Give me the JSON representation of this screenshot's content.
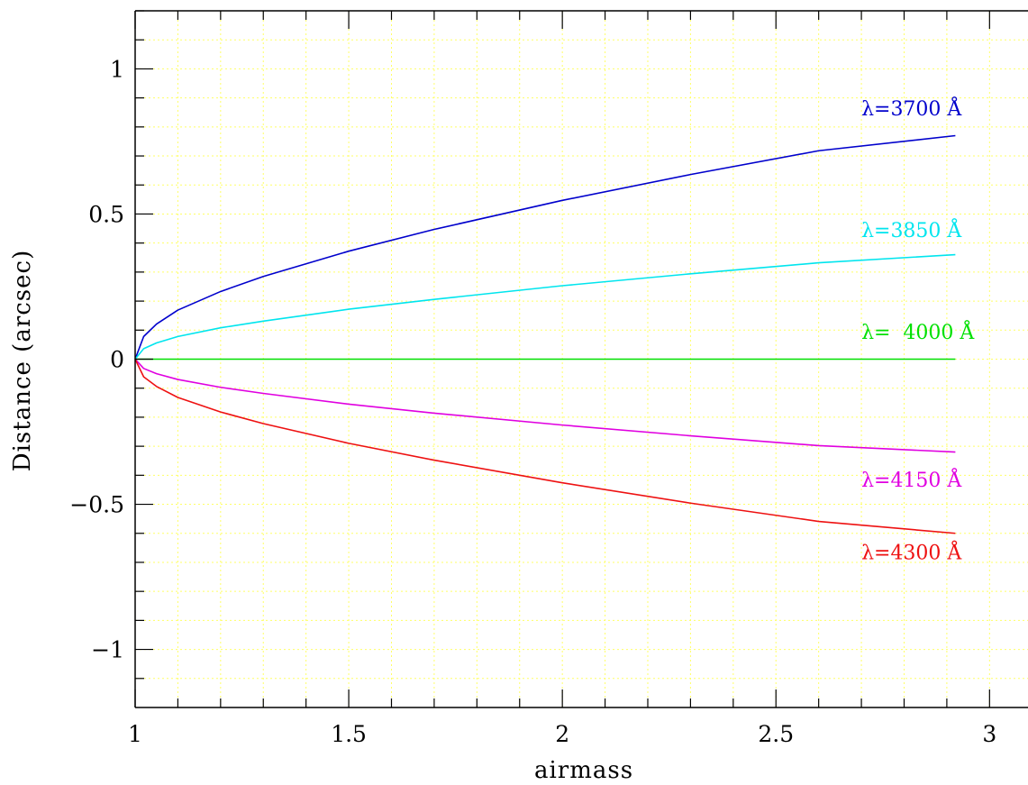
{
  "chart_data": {
    "type": "line",
    "xlabel": "airmass",
    "ylabel": "Distance (arcsec)",
    "xlim": [
      1,
      3.09
    ],
    "ylim": [
      -1.2,
      1.2
    ],
    "x_ticks": [
      {
        "value": 1,
        "label": "1"
      },
      {
        "value": 1.5,
        "label": "1.5"
      },
      {
        "value": 2,
        "label": "2"
      },
      {
        "value": 2.5,
        "label": "2.5"
      },
      {
        "value": 3,
        "label": "3"
      }
    ],
    "y_ticks": [
      {
        "value": -1,
        "label": "−1"
      },
      {
        "value": -0.5,
        "label": "−0.5"
      },
      {
        "value": 0,
        "label": "0"
      },
      {
        "value": 0.5,
        "label": "0.5"
      },
      {
        "value": 1,
        "label": "1"
      }
    ],
    "grid": true,
    "grid_color": "#ffff66",
    "x_minor_step": 0.1,
    "y_minor_step": 0.1,
    "series": [
      {
        "name": "λ=3700 Å",
        "color": "#0000cc",
        "x": [
          1.0,
          1.02,
          1.05,
          1.1,
          1.2,
          1.3,
          1.5,
          1.7,
          2.0,
          2.3,
          2.6,
          2.92
        ],
        "y": [
          0.0,
          0.078,
          0.121,
          0.169,
          0.233,
          0.285,
          0.372,
          0.447,
          0.547,
          0.636,
          0.718,
          0.77
        ]
      },
      {
        "name": "λ=3850 Å",
        "color": "#00e5ee",
        "x": [
          1.0,
          1.02,
          1.05,
          1.1,
          1.2,
          1.3,
          1.5,
          1.7,
          2.0,
          2.3,
          2.6,
          2.92
        ],
        "y": [
          0.0,
          0.036,
          0.056,
          0.078,
          0.108,
          0.131,
          0.172,
          0.206,
          0.253,
          0.294,
          0.332,
          0.36
        ]
      },
      {
        "name": "λ=  4000 Å",
        "color": "#00e000",
        "x": [
          1.0,
          2.92
        ],
        "y": [
          0.0,
          0.0
        ]
      },
      {
        "name": "λ=4150 Å",
        "color": "#e000e0",
        "x": [
          1.0,
          1.02,
          1.05,
          1.1,
          1.2,
          1.3,
          1.5,
          1.7,
          2.0,
          2.3,
          2.6,
          2.92
        ],
        "y": [
          0.0,
          -0.032,
          -0.05,
          -0.07,
          -0.097,
          -0.118,
          -0.155,
          -0.186,
          -0.227,
          -0.264,
          -0.298,
          -0.32
        ]
      },
      {
        "name": "λ=4300 Å",
        "color": "#ee1111",
        "x": [
          1.0,
          1.02,
          1.05,
          1.1,
          1.2,
          1.3,
          1.5,
          1.7,
          2.0,
          2.3,
          2.6,
          2.92
        ],
        "y": [
          0.0,
          -0.061,
          -0.094,
          -0.132,
          -0.182,
          -0.222,
          -0.29,
          -0.348,
          -0.426,
          -0.496,
          -0.559,
          -0.6
        ]
      }
    ],
    "annotations": [
      {
        "text": "λ=3700 Å",
        "x": 2.7,
        "y": 0.84,
        "color": "#0000cc"
      },
      {
        "text": "λ=3850 Å",
        "x": 2.7,
        "y": 0.42,
        "color": "#00e5ee"
      },
      {
        "text": "λ=  4000 Å",
        "x": 2.7,
        "y": 0.07,
        "color": "#00e000"
      },
      {
        "text": "λ=4150 Å",
        "x": 2.7,
        "y": -0.44,
        "color": "#e000e0"
      },
      {
        "text": "λ=4300 Å",
        "x": 2.7,
        "y": -0.69,
        "color": "#ee1111"
      }
    ]
  }
}
